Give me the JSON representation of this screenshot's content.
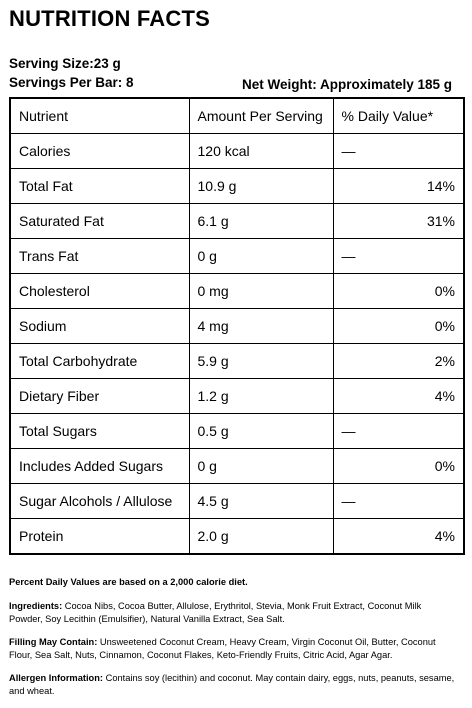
{
  "title": "NUTRITION FACTS",
  "serving_size": "Serving Size:23 g",
  "servings_per_bar": "Servings Per Bar: 8",
  "net_weight": "Net Weight: Approximately 185 g",
  "table": {
    "headers": [
      "Nutrient",
      "Amount Per Serving",
      "% Daily Value*"
    ],
    "rows": [
      {
        "nutrient": "Calories",
        "amount": "120 kcal",
        "dv": "—"
      },
      {
        "nutrient": "Total Fat",
        "amount": "10.9 g",
        "dv": "14%"
      },
      {
        "nutrient": "Saturated Fat",
        "amount": "6.1 g",
        "dv": "31%"
      },
      {
        "nutrient": "Trans Fat",
        "amount": "0 g",
        "dv": "—"
      },
      {
        "nutrient": "Cholesterol",
        "amount": "0 mg",
        "dv": "0%"
      },
      {
        "nutrient": "Sodium",
        "amount": "4 mg",
        "dv": "0%"
      },
      {
        "nutrient": "Total Carbohydrate",
        "amount": "5.9 g",
        "dv": "2%"
      },
      {
        "nutrient": "Dietary Fiber",
        "amount": "1.2 g",
        "dv": "4%"
      },
      {
        "nutrient": "Total Sugars",
        "amount": "0.5 g",
        "dv": "—"
      },
      {
        "nutrient": "Includes Added Sugars",
        "amount": "0 g",
        "dv": "0%"
      },
      {
        "nutrient": "Sugar Alcohols / Allulose",
        "amount": "4.5 g",
        "dv": "—"
      },
      {
        "nutrient": "Protein",
        "amount": "2.0 g",
        "dv": "4%"
      }
    ]
  },
  "notes": {
    "daily_values": "Percent Daily Values are based on a 2,000 calorie diet.",
    "ingredients_label": "Ingredients:",
    "ingredients_text": " Cocoa Nibs, Cocoa Butter, Allulose, Erythritol, Stevia, Monk Fruit Extract, Coconut Milk Powder, Soy Lecithin (Emulsifier), Natural Vanilla Extract, Sea Salt.",
    "filling_label": "Filling May Contain:",
    "filling_text": " Unsweetened Coconut Cream, Heavy Cream, Virgin Coconut Oil, Butter, Coconut Flour, Sea Salt, Nuts, Cinnamon, Coconut Flakes, Keto-Friendly Fruits, Citric Acid, Agar Agar.",
    "allergen_label": "Allergen Information:",
    "allergen_text": " Contains soy (lecithin) and coconut. May contain dairy, eggs, nuts, peanuts, sesame, and wheat."
  }
}
